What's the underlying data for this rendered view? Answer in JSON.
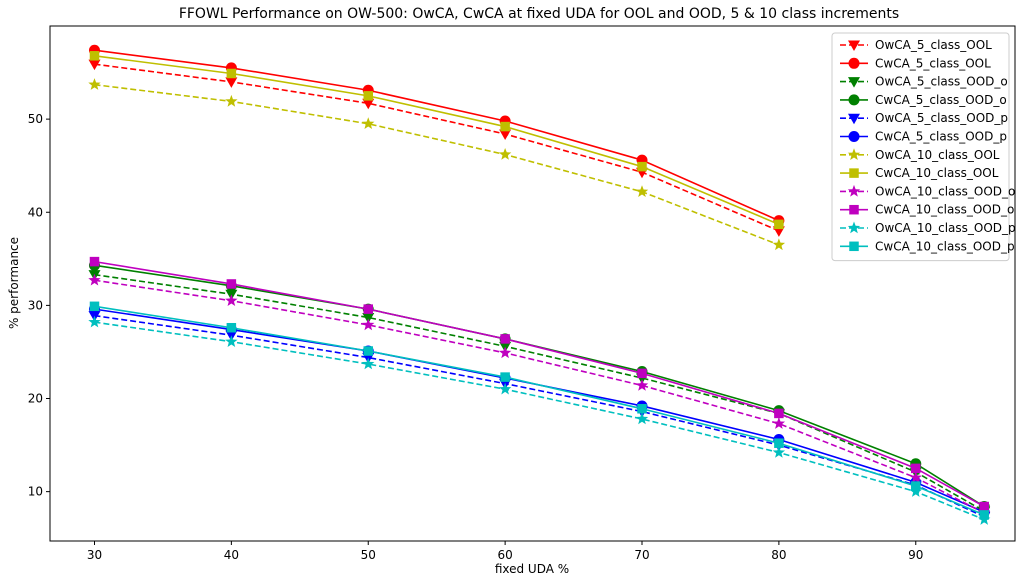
{
  "chart_data": {
    "type": "line",
    "title": "FFOWL Performance on OW-500: OwCA, CwCA at fixed UDA for OOL and OOD, 5 & 10 class increments",
    "xlabel": "fixed UDA %",
    "ylabel": "% performance",
    "xlim": [
      26.75,
      97.25
    ],
    "ylim": [
      4.7,
      60.0
    ],
    "xticks": [
      30,
      40,
      50,
      60,
      70,
      80,
      90
    ],
    "yticks": [
      10,
      20,
      30,
      40,
      50
    ],
    "grid": false,
    "legend_position": "top-right",
    "series": [
      {
        "name": "OwCA_5_class_OOL",
        "color": "#ff0000",
        "dash": "dashed",
        "marker": "triangle-down",
        "x": [
          30,
          40,
          50,
          60,
          70,
          80
        ],
        "y": [
          55.9,
          54.0,
          51.7,
          48.4,
          44.3,
          38.0
        ]
      },
      {
        "name": "CwCA_5_class_OOL",
        "color": "#ff0000",
        "dash": "solid",
        "marker": "circle",
        "x": [
          30,
          40,
          50,
          60,
          70,
          80
        ],
        "y": [
          57.4,
          55.5,
          53.1,
          49.8,
          45.6,
          39.1
        ]
      },
      {
        "name": "OwCA_5_class_OOD_o",
        "color": "#008000",
        "dash": "dashed",
        "marker": "triangle-down",
        "x": [
          30,
          40,
          50,
          60,
          70,
          80,
          90,
          95
        ],
        "y": [
          33.3,
          31.2,
          28.7,
          25.6,
          22.2,
          18.4,
          12.1,
          7.9
        ]
      },
      {
        "name": "CwCA_5_class_OOD_o",
        "color": "#008000",
        "dash": "solid",
        "marker": "circle",
        "x": [
          30,
          40,
          50,
          60,
          70,
          80,
          90,
          95
        ],
        "y": [
          34.3,
          32.1,
          29.6,
          26.4,
          22.9,
          18.7,
          13.0,
          8.4
        ]
      },
      {
        "name": "OwCA_5_class_OOD_p",
        "color": "#0000ff",
        "dash": "dashed",
        "marker": "triangle-down",
        "x": [
          30,
          40,
          50,
          60,
          70,
          80,
          90,
          95
        ],
        "y": [
          28.9,
          26.8,
          24.4,
          21.6,
          18.6,
          15.0,
          10.7,
          7.3
        ]
      },
      {
        "name": "CwCA_5_class_OOD_p",
        "color": "#0000ff",
        "dash": "solid",
        "marker": "circle",
        "x": [
          30,
          40,
          50,
          60,
          70,
          80,
          90,
          95
        ],
        "y": [
          29.6,
          27.4,
          25.1,
          22.2,
          19.2,
          15.6,
          11.0,
          7.8
        ]
      },
      {
        "name": "OwCA_10_class_OOL",
        "color": "#bfbf00",
        "dash": "dashed",
        "marker": "star",
        "x": [
          30,
          40,
          50,
          60,
          70,
          80
        ],
        "y": [
          53.7,
          51.9,
          49.5,
          46.2,
          42.2,
          36.5
        ]
      },
      {
        "name": "CwCA_10_class_OOL",
        "color": "#bfbf00",
        "dash": "solid",
        "marker": "square",
        "x": [
          30,
          40,
          50,
          60,
          70,
          80
        ],
        "y": [
          56.8,
          54.9,
          52.5,
          49.2,
          44.9,
          38.7
        ]
      },
      {
        "name": "OwCA_10_class_OOD_o",
        "color": "#bf00bf",
        "dash": "dashed",
        "marker": "star",
        "x": [
          30,
          40,
          50,
          60,
          70,
          80,
          90,
          95
        ],
        "y": [
          32.7,
          30.5,
          27.9,
          24.9,
          21.4,
          17.3,
          11.5,
          7.7
        ]
      },
      {
        "name": "CwCA_10_class_OOD_o",
        "color": "#bf00bf",
        "dash": "solid",
        "marker": "square",
        "x": [
          30,
          40,
          50,
          60,
          70,
          80,
          90,
          95
        ],
        "y": [
          34.7,
          32.3,
          29.6,
          26.4,
          22.7,
          18.4,
          12.5,
          8.4
        ]
      },
      {
        "name": "OwCA_10_class_OOD_p",
        "color": "#00bfbf",
        "dash": "dashed",
        "marker": "star",
        "x": [
          30,
          40,
          50,
          60,
          70,
          80,
          90,
          95
        ],
        "y": [
          28.2,
          26.1,
          23.7,
          21.0,
          17.8,
          14.2,
          10.0,
          7.0
        ]
      },
      {
        "name": "CwCA_10_class_OOD_p",
        "color": "#00bfbf",
        "dash": "solid",
        "marker": "square",
        "x": [
          30,
          40,
          50,
          60,
          70,
          80,
          90,
          95
        ],
        "y": [
          29.9,
          27.6,
          25.1,
          22.3,
          18.9,
          15.2,
          10.6,
          7.5
        ]
      }
    ]
  }
}
